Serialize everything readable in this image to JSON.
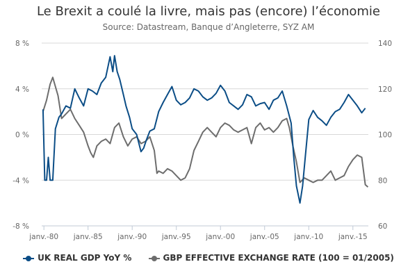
{
  "chart_data": {
    "type": "line",
    "title": "Le Brexit a coulé la livre, mais pas (encore) l’économie",
    "subtitle": "Source: Datastream, Banque d’Angleterre, SYZ AM",
    "x_ticks": [
      "janv.-80",
      "janv.-85",
      "janv.-90",
      "janv.-95",
      "janv.-00",
      "janv.-05",
      "janv.-10",
      "janv.-15"
    ],
    "x_range": [
      1979.75,
      2016.75
    ],
    "y_left": {
      "range": [
        -8,
        8
      ],
      "ticks": [
        "8 %",
        "4 %",
        "0 %",
        "-4 %",
        "-8 %"
      ],
      "tick_values": [
        8,
        4,
        0,
        -4,
        -8
      ]
    },
    "y_right": {
      "range": [
        60,
        140
      ],
      "ticks": [
        "140",
        "120",
        "100",
        "80",
        "60"
      ],
      "tick_values": [
        140,
        120,
        100,
        80,
        60
      ]
    },
    "grid": "horizontal",
    "legend_position": "bottom",
    "series": [
      {
        "name": "UK REAL GDP YoY %",
        "axis": "left",
        "color": "#0b4d86",
        "x": [
          1979.9,
          1980.1,
          1980.3,
          1980.5,
          1980.7,
          1981.0,
          1981.3,
          1981.7,
          1982.0,
          1982.5,
          1983.0,
          1983.5,
          1984.0,
          1984.5,
          1985.0,
          1985.5,
          1986.0,
          1986.5,
          1987.0,
          1987.5,
          1987.8,
          1988.0,
          1988.3,
          1988.6,
          1989.0,
          1989.3,
          1989.7,
          1990.0,
          1990.5,
          1991.0,
          1991.3,
          1991.6,
          1992.0,
          1992.5,
          1993.0,
          1993.5,
          1994.0,
          1994.5,
          1995.0,
          1995.5,
          1996.0,
          1996.5,
          1997.0,
          1997.5,
          1998.0,
          1998.5,
          1999.0,
          1999.5,
          2000.0,
          2000.5,
          2001.0,
          2001.5,
          2002.0,
          2002.5,
          2003.0,
          2003.5,
          2004.0,
          2004.5,
          2005.0,
          2005.5,
          2006.0,
          2006.5,
          2007.0,
          2007.5,
          2008.0,
          2008.3,
          2008.6,
          2009.0,
          2009.3,
          2009.6,
          2010.0,
          2010.5,
          2011.0,
          2011.5,
          2012.0,
          2012.5,
          2013.0,
          2013.5,
          2014.0,
          2014.5,
          2015.0,
          2015.5,
          2016.0,
          2016.4
        ],
        "values": [
          2.2,
          -4.0,
          -4.0,
          -2.0,
          -4.0,
          -4.0,
          0.5,
          1.5,
          1.8,
          2.5,
          2.3,
          4.0,
          3.2,
          2.5,
          4.0,
          3.8,
          3.5,
          4.5,
          5.0,
          6.8,
          5.5,
          6.9,
          5.5,
          4.8,
          3.5,
          2.5,
          1.5,
          0.5,
          0.0,
          -1.5,
          -1.2,
          -0.5,
          0.3,
          0.5,
          2.0,
          2.8,
          3.5,
          4.2,
          3.0,
          2.6,
          2.8,
          3.2,
          4.0,
          3.8,
          3.3,
          3.0,
          3.2,
          3.6,
          4.3,
          3.8,
          2.8,
          2.5,
          2.2,
          2.6,
          3.5,
          3.3,
          2.5,
          2.7,
          2.8,
          2.2,
          3.0,
          3.2,
          3.8,
          2.5,
          1.0,
          -2.0,
          -4.5,
          -6.0,
          -4.5,
          -2.0,
          1.3,
          2.1,
          1.5,
          1.2,
          0.8,
          1.5,
          2.0,
          2.2,
          2.8,
          3.5,
          3.0,
          2.5,
          1.9,
          2.3
        ]
      },
      {
        "name": "GBP EFFECTIVE EXCHANGE RATE (100 = 01/2005)",
        "axis": "right",
        "color": "#6d6d6d",
        "x": [
          1979.9,
          1980.3,
          1980.7,
          1981.0,
          1981.3,
          1981.6,
          1982.0,
          1982.5,
          1983.0,
          1983.5,
          1984.0,
          1984.5,
          1985.0,
          1985.3,
          1985.6,
          1986.0,
          1986.5,
          1987.0,
          1987.5,
          1988.0,
          1988.5,
          1989.0,
          1989.5,
          1990.0,
          1990.5,
          1991.0,
          1991.5,
          1992.0,
          1992.5,
          1992.8,
          1993.0,
          1993.5,
          1994.0,
          1994.5,
          1995.0,
          1995.5,
          1996.0,
          1996.5,
          1997.0,
          1997.5,
          1998.0,
          1998.5,
          1999.0,
          1999.5,
          2000.0,
          2000.5,
          2001.0,
          2001.5,
          2002.0,
          2002.5,
          2003.0,
          2003.5,
          2004.0,
          2004.5,
          2005.0,
          2005.5,
          2006.0,
          2006.5,
          2007.0,
          2007.5,
          2007.8,
          2008.2,
          2008.6,
          2009.0,
          2009.5,
          2010.0,
          2010.5,
          2011.0,
          2011.5,
          2012.0,
          2012.5,
          2013.0,
          2013.5,
          2014.0,
          2014.5,
          2015.0,
          2015.5,
          2016.0,
          2016.4,
          2016.7
        ],
        "values": [
          110,
          115,
          122,
          125,
          121,
          117,
          107,
          109,
          111,
          107,
          104,
          101,
          95,
          92,
          90,
          95,
          97,
          98,
          96,
          103,
          105,
          99,
          95,
          98,
          99,
          96,
          97,
          99,
          93,
          83,
          84,
          83,
          85,
          84,
          82,
          80,
          81,
          85,
          93,
          97,
          101,
          103,
          101,
          99,
          103,
          105,
          104,
          102,
          101,
          102,
          103,
          96,
          103,
          105,
          102,
          103,
          101,
          103,
          106,
          107,
          103,
          95,
          88,
          79,
          81,
          80,
          79,
          80,
          80,
          82,
          84,
          80,
          81,
          82,
          86,
          89,
          91,
          90,
          78,
          77
        ]
      }
    ]
  },
  "legend": {
    "gdp": "UK REAL GDP YoY %",
    "fx": "GBP EFFECTIVE EXCHANGE RATE (100 = 01/2005)"
  }
}
